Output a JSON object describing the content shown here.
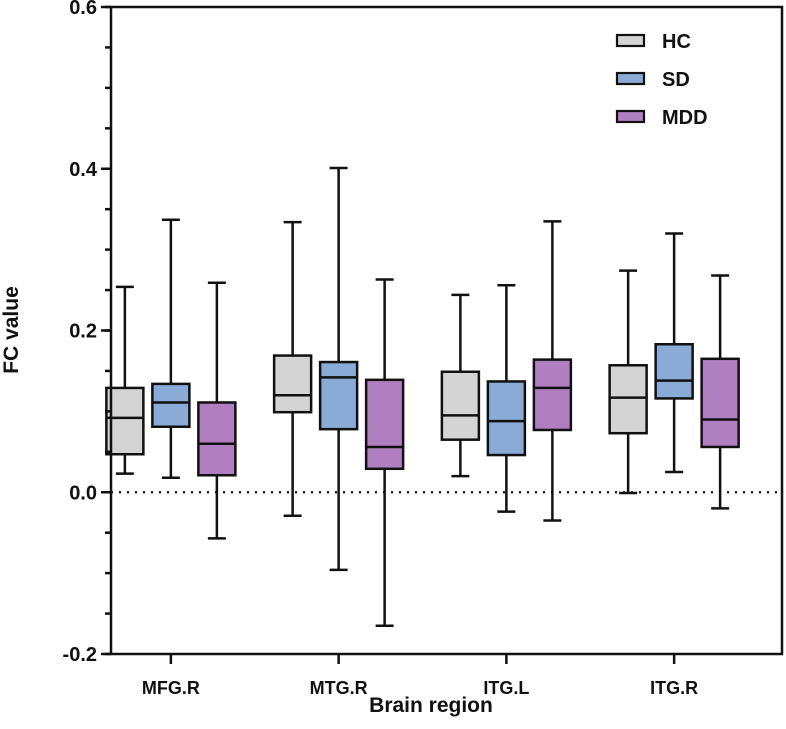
{
  "chart_data": {
    "type": "box",
    "title": "",
    "xlabel": "Brain region",
    "ylabel": "FC value",
    "ylim": [
      -0.2,
      0.6
    ],
    "yticks": [
      "-0.2",
      "0.0",
      "0.2",
      "0.4",
      "0.6"
    ],
    "ytick_values": [
      -0.2,
      0.0,
      0.2,
      0.4,
      0.6
    ],
    "minor_tick_step": 0.05,
    "reference_line": 0.0,
    "legend_position": "top-right",
    "categories": [
      "MFG.R",
      "MTG.R",
      "ITG.L",
      "ITG.R"
    ],
    "series": [
      {
        "name": "HC",
        "color": "#d4d4d4",
        "boxes": [
          {
            "min": 0.023,
            "q1": 0.047,
            "median": 0.092,
            "q3": 0.129,
            "max": 0.254
          },
          {
            "min": -0.029,
            "q1": 0.099,
            "median": 0.12,
            "q3": 0.169,
            "max": 0.334
          },
          {
            "min": 0.02,
            "q1": 0.065,
            "median": 0.095,
            "q3": 0.149,
            "max": 0.244
          },
          {
            "min": -0.001,
            "q1": 0.073,
            "median": 0.117,
            "q3": 0.157,
            "max": 0.274
          }
        ]
      },
      {
        "name": "SD",
        "color": "#8aabd5",
        "boxes": [
          {
            "min": 0.018,
            "q1": 0.081,
            "median": 0.111,
            "q3": 0.134,
            "max": 0.337
          },
          {
            "min": -0.096,
            "q1": 0.078,
            "median": 0.142,
            "q3": 0.161,
            "max": 0.401
          },
          {
            "min": -0.024,
            "q1": 0.046,
            "median": 0.088,
            "q3": 0.137,
            "max": 0.256
          },
          {
            "min": 0.025,
            "q1": 0.116,
            "median": 0.138,
            "q3": 0.183,
            "max": 0.32
          }
        ]
      },
      {
        "name": "MDD",
        "color": "#b07fc0",
        "boxes": [
          {
            "min": -0.057,
            "q1": 0.021,
            "median": 0.06,
            "q3": 0.111,
            "max": 0.259
          },
          {
            "min": -0.165,
            "q1": 0.029,
            "median": 0.056,
            "q3": 0.139,
            "max": 0.263
          },
          {
            "min": -0.035,
            "q1": 0.077,
            "median": 0.129,
            "q3": 0.164,
            "max": 0.335
          },
          {
            "min": -0.02,
            "q1": 0.056,
            "median": 0.09,
            "q3": 0.165,
            "max": 0.268
          }
        ]
      }
    ]
  }
}
